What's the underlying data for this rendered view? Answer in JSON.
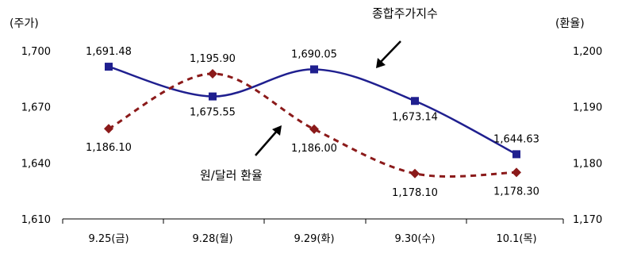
{
  "chart_data": {
    "type": "line",
    "categories": [
      "9.25(금)",
      "9.28(월)",
      "9.29(화)",
      "9.30(수)",
      "10.1(목)"
    ],
    "y_left": {
      "unit_label": "(주가)",
      "ticks": [
        "1,700",
        "1,670",
        "1,640",
        "1,610"
      ],
      "range": [
        1610,
        1700
      ]
    },
    "y_right": {
      "unit_label": "(환율)",
      "ticks": [
        "1,200",
        "1,190",
        "1,180",
        "1,170"
      ],
      "range": [
        1170,
        1200
      ]
    },
    "series": [
      {
        "name": "종합주가지수",
        "axis": "left",
        "color": "#1f1f8f",
        "style": "solid",
        "marker": "square",
        "values": [
          1691.48,
          1675.55,
          1690.05,
          1673.14,
          1644.63
        ],
        "labels": [
          "1,691.48",
          "1,675.55",
          "1,690.05",
          "1,673.14",
          "1,644.63"
        ]
      },
      {
        "name": "원/달러 환율",
        "axis": "right",
        "color": "#8b1a1a",
        "style": "dashed",
        "marker": "diamond",
        "values": [
          1186.1,
          1195.9,
          1186.0,
          1178.1,
          1178.3
        ],
        "labels": [
          "1,186.10",
          "1,195.90",
          "1,186.00",
          "1,178.10",
          "1,178.30"
        ]
      }
    ],
    "grid": false,
    "legend": "none"
  }
}
